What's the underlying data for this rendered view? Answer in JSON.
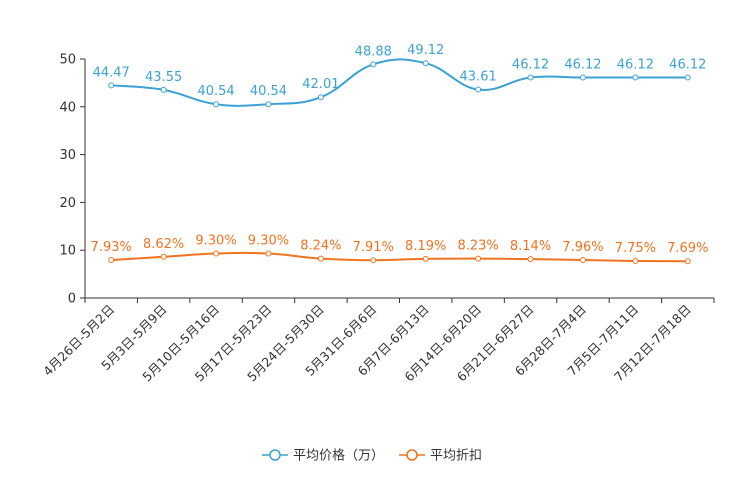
{
  "chart_data": {
    "type": "line",
    "title": "",
    "xlabel": "",
    "ylabel": "",
    "ylim": [
      0,
      50
    ],
    "yticks": [
      0,
      10,
      20,
      30,
      40,
      50
    ],
    "grid": false,
    "legend_position": "bottom-center",
    "categories": [
      "4月26日-5月2日",
      "5月3日-5月9日",
      "5月10日-5月16日",
      "5月17日-5月23日",
      "5月24日-5月30日",
      "5月31日-6月6日",
      "6月7日-6月13日",
      "6月14日-6月20日",
      "6月21日-6月27日",
      "6月28日-7月4日",
      "7月5日-7月11日",
      "7月12日-7月18日"
    ],
    "series": [
      {
        "name": "平均价格（万）",
        "color": "#3ba1d6",
        "values": [
          44.47,
          43.55,
          40.54,
          40.54,
          42.01,
          48.88,
          49.12,
          43.61,
          46.12,
          46.12,
          46.12,
          46.12
        ],
        "labels": [
          "44.47",
          "43.55",
          "40.54",
          "40.54",
          "42.01",
          "48.88",
          "49.12",
          "43.61",
          "46.12",
          "46.12",
          "46.12",
          "46.12"
        ]
      },
      {
        "name": "平均折扣",
        "color": "#f0731f",
        "values": [
          7.93,
          8.62,
          9.3,
          9.3,
          8.24,
          7.91,
          8.19,
          8.23,
          8.14,
          7.96,
          7.75,
          7.69
        ],
        "labels": [
          "7.93%",
          "8.62%",
          "9.30%",
          "9.30%",
          "8.24%",
          "7.91%",
          "8.19%",
          "8.23%",
          "8.14%",
          "7.96%",
          "7.75%",
          "7.69%"
        ]
      }
    ]
  }
}
